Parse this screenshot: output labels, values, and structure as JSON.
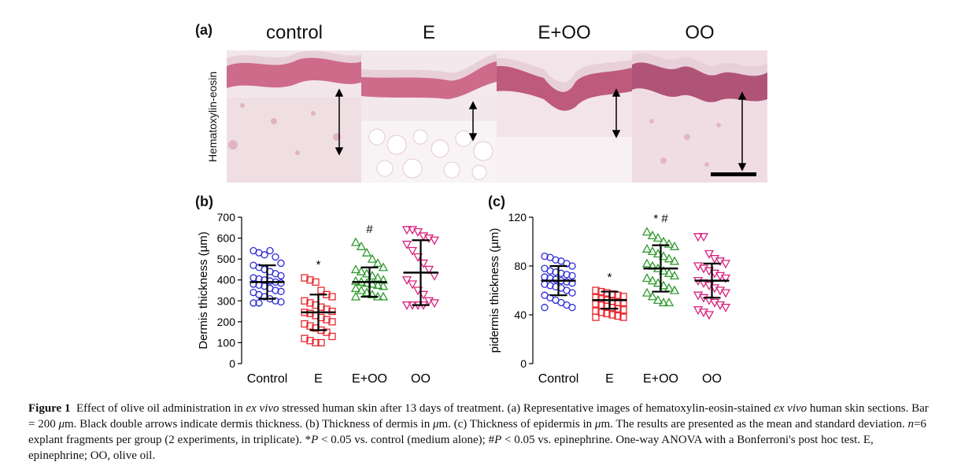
{
  "figure": {
    "panel_a_label": "(a)",
    "panel_b_label": "(b)",
    "panel_c_label": "(c)",
    "stain_label": "Hematoxylin-eosin",
    "column_titles": [
      "control",
      "E",
      "E+OO",
      "OO"
    ],
    "arrow_heights": [
      0.45,
      0.26,
      0.36,
      0.55
    ],
    "scale_bar_label": "Bar = 200 µm"
  },
  "caption": {
    "fig_no": "Figure 1",
    "text1": "Effect of olive oil administration in ",
    "ex_vivo1": "ex vivo",
    "text2": " stressed human skin after 13 days of treatment. (a) Representative images of hematoxylin-eosin-stained ",
    "ex_vivo2": "ex vivo",
    "text3": " human skin sections. Bar = 200 ",
    "mu1": "μ",
    "text4": "m. Black double arrows indicate dermis thickness. (b) Thickness of dermis in ",
    "mu2": "μ",
    "text5": "m. (c) Thickness of epidermis in ",
    "mu3": "μ",
    "text6": "m. The results are presented as the mean and standard deviation. ",
    "n_eq": "n",
    "text7": "=6 explant fragments per group (2 experiments, in triplicate). *",
    "p1": "P",
    "text8": " < 0.05 vs. control (medium alone); #",
    "p2": "P",
    "text9": " < 0.05 vs. epinephrine. One-way ANOVA with a Bonferroni's post hoc test. E, epinephrine; OO, olive oil."
  },
  "chart_data": [
    {
      "type": "scatter",
      "panel": "(b)",
      "ylabel": "Dermis thickness (µm)",
      "ylim": [
        0,
        700
      ],
      "yticks": [
        0,
        100,
        200,
        300,
        400,
        500,
        600,
        700
      ],
      "categories": [
        "Control",
        "E",
        "E+OO",
        "OO"
      ],
      "markers": [
        "circle",
        "square",
        "triangle-up",
        "triangle-down"
      ],
      "colors": [
        "#2b2bd6",
        "#e8262d",
        "#2f9a2f",
        "#d6247e"
      ],
      "means": [
        390,
        245,
        390,
        435
      ],
      "sd": [
        80,
        85,
        70,
        155
      ],
      "annotations": [
        "",
        "*",
        "#",
        ""
      ],
      "points": [
        [
          540,
          530,
          520,
          540,
          510,
          480,
          470,
          460,
          450,
          440,
          430,
          420,
          410,
          405,
          400,
          395,
          390,
          385,
          380,
          375,
          370,
          360,
          350,
          345,
          340,
          330,
          320,
          310,
          300,
          295,
          290,
          290
        ],
        [
          410,
          400,
          390,
          350,
          330,
          320,
          300,
          290,
          280,
          270,
          260,
          250,
          245,
          240,
          230,
          220,
          210,
          200,
          190,
          180,
          170,
          160,
          150,
          130,
          120,
          110,
          100,
          100
        ],
        [
          580,
          560,
          530,
          500,
          480,
          460,
          450,
          440,
          430,
          420,
          410,
          400,
          395,
          390,
          385,
          380,
          375,
          370,
          360,
          350,
          340,
          330,
          320,
          320,
          320
        ],
        [
          640,
          640,
          630,
          610,
          600,
          590,
          570,
          540,
          510,
          480,
          450,
          420,
          400,
          380,
          350,
          330,
          300,
          290,
          280,
          280,
          280,
          280
        ]
      ]
    },
    {
      "type": "scatter",
      "panel": "(c)",
      "ylabel": "pidermis thickness (µm)",
      "ylim": [
        0,
        120
      ],
      "yticks": [
        0,
        40,
        80,
        120
      ],
      "categories": [
        "Control",
        "E",
        "E+OO",
        "OO"
      ],
      "markers": [
        "circle",
        "square",
        "triangle-up",
        "triangle-down"
      ],
      "colors": [
        "#2b2bd6",
        "#e8262d",
        "#2f9a2f",
        "#d6247e"
      ],
      "means": [
        68,
        52,
        78,
        68
      ],
      "sd": [
        12,
        7,
        19,
        14
      ],
      "annotations": [
        "",
        "*",
        "* #",
        ""
      ],
      "points": [
        [
          88,
          87,
          85,
          84,
          82,
          80,
          78,
          76,
          75,
          74,
          73,
          72,
          71,
          70,
          69,
          68,
          67,
          66,
          65,
          64,
          63,
          62,
          60,
          58,
          56,
          54,
          52,
          50,
          48,
          46,
          46
        ],
        [
          60,
          59,
          58,
          57,
          56,
          55,
          54,
          53,
          52,
          51,
          50,
          50,
          49,
          48,
          47,
          46,
          45,
          44,
          43,
          42,
          41,
          40,
          39,
          38,
          38
        ],
        [
          108,
          105,
          103,
          100,
          98,
          96,
          94,
          92,
          90,
          88,
          86,
          84,
          82,
          80,
          78,
          76,
          74,
          72,
          70,
          68,
          66,
          64,
          62,
          60,
          58,
          55,
          52,
          50,
          50
        ],
        [
          104,
          104,
          90,
          86,
          84,
          82,
          80,
          78,
          76,
          74,
          72,
          70,
          68,
          66,
          64,
          62,
          60,
          58,
          56,
          54,
          52,
          50,
          48,
          46,
          44,
          42,
          40
        ]
      ]
    }
  ]
}
